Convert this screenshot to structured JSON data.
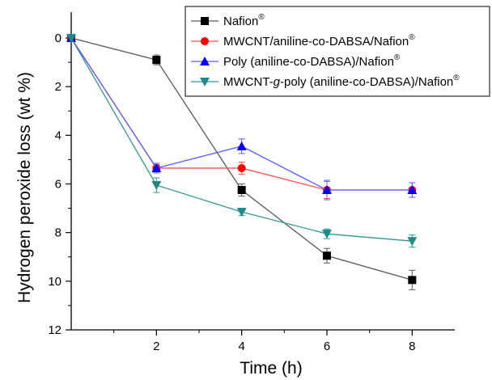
{
  "chart_data": {
    "type": "line",
    "xlabel": "Time (h)",
    "ylabel": "Hydrogen peroxide loss (wt %)",
    "xlim": [
      0,
      9
    ],
    "ylim": [
      0,
      12
    ],
    "y_inverted": true,
    "x_ticks": [
      2,
      4,
      6,
      8
    ],
    "y_ticks": [
      0,
      2,
      4,
      6,
      8,
      10,
      12
    ],
    "grid": false,
    "legend_position": "top-right",
    "x": [
      0,
      2,
      4,
      6,
      8
    ],
    "series": [
      {
        "name": "Nafion",
        "name_superscript": "®",
        "color": "#595959",
        "marker_color": "#000000",
        "marker": "square",
        "values": [
          0,
          0.9,
          6.25,
          8.95,
          9.95
        ],
        "errors": [
          0,
          0.2,
          0.25,
          0.3,
          0.4
        ]
      },
      {
        "name": "MWCNT/aniline-co-DABSA/Nafion",
        "name_superscript": "®",
        "color": "#ff4d4d",
        "marker_color": "#ff0000",
        "marker": "circle",
        "values": [
          0,
          5.35,
          5.35,
          6.25,
          6.25
        ],
        "errors": [
          0,
          0.15,
          0.25,
          0.35,
          0.3
        ]
      },
      {
        "name": "Poly (aniline-co-DABSA)/Nafion",
        "name_superscript": "®",
        "color": "#5a5aff",
        "marker_color": "#0000ff",
        "marker": "triangle-up",
        "values": [
          0,
          5.35,
          4.45,
          6.25,
          6.25
        ],
        "errors": [
          0,
          0.2,
          0.3,
          0.4,
          0.3
        ]
      },
      {
        "name": "MWCNT-g-poly (aniline-co-DABSA)/Nafion",
        "name_superscript": "®",
        "name_italic_part": "g",
        "color": "#2f9696",
        "marker_color": "#1e8a8a",
        "marker": "triangle-down",
        "values": [
          0,
          6.05,
          7.15,
          8.05,
          8.35
        ],
        "errors": [
          0,
          0.3,
          0.15,
          0.2,
          0.25
        ]
      }
    ]
  }
}
